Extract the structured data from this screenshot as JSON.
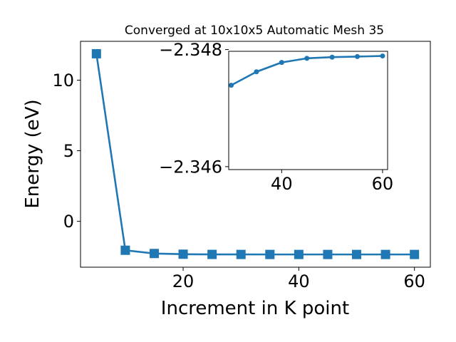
{
  "chart_data": [
    {
      "type": "line",
      "title": "Converged at 10x10x5 Automatic Mesh 35",
      "xlabel": "Increment in K point",
      "ylabel": "Energy (eV)",
      "xlim": [
        2.25,
        62.75
      ],
      "ylim": [
        -3.25,
        12.75
      ],
      "xticks": [
        20,
        40,
        60
      ],
      "yticks": [
        0,
        5,
        10
      ],
      "xtick_labels": [
        "20",
        "40",
        "60"
      ],
      "ytick_labels": [
        "0",
        "5",
        "10"
      ],
      "grid": false,
      "series": [
        {
          "marker": "square",
          "color": "#1f77b4",
          "x": [
            5,
            10,
            15,
            20,
            25,
            30,
            35,
            40,
            45,
            50,
            55,
            60
          ],
          "y": [
            11.87,
            -2.05,
            -2.28,
            -2.33,
            -2.345,
            -2.347,
            -2.3476,
            -2.3479,
            -2.3481,
            -2.3481,
            -2.3482,
            -2.3482
          ]
        }
      ]
    },
    {
      "type": "line",
      "role": "inset",
      "xlim": [
        29.5,
        61.0
      ],
      "ylim": [
        -2.34595,
        -2.34797
      ],
      "xticks": [
        40,
        60
      ],
      "yticks": [
        -2.348,
        -2.346
      ],
      "xtick_labels": [
        "40",
        "60"
      ],
      "ytick_labels": [
        "−2.348",
        "−2.346"
      ],
      "grid": false,
      "series": [
        {
          "marker": "circle",
          "color": "#1f77b4",
          "x": [
            30,
            35,
            40,
            45,
            50,
            55,
            60
          ],
          "y": [
            -2.34739,
            -2.34762,
            -2.34778,
            -2.34785,
            -2.34787,
            -2.34788,
            -2.34789
          ]
        }
      ]
    }
  ]
}
